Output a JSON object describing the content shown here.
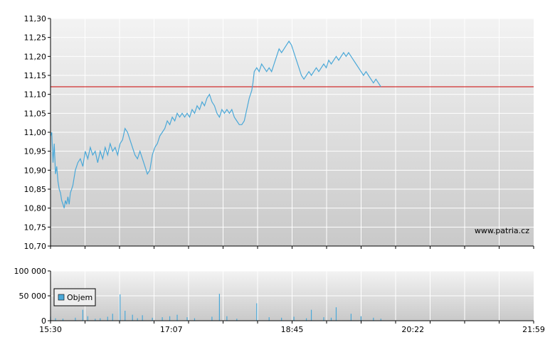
{
  "chart_data": [
    {
      "type": "line",
      "title": "",
      "xlabel": "",
      "ylabel": "",
      "ylim": [
        10.7,
        11.3
      ],
      "y_ticks": [
        "10,70",
        "10,75",
        "10,80",
        "10,85",
        "10,90",
        "10,95",
        "11,00",
        "11,05",
        "11,10",
        "11,15",
        "11,20",
        "11,25",
        "11,30"
      ],
      "x_ticks": [
        "15:30",
        "17:07",
        "18:45",
        "20:22",
        "21:59"
      ],
      "xlim_minutes": [
        930,
        1319
      ],
      "grid": true,
      "watermark": "www.patria.cz",
      "reference_line": {
        "value": 11.12,
        "color": "#cc0000"
      },
      "series": [
        {
          "color": "#4aa8d8",
          "points": [
            [
              930,
              10.99
            ],
            [
              931,
              11.0
            ],
            [
              932,
              10.92
            ],
            [
              933,
              10.97
            ],
            [
              934,
              10.89
            ],
            [
              935,
              10.91
            ],
            [
              936,
              10.87
            ],
            [
              937,
              10.85
            ],
            [
              938,
              10.84
            ],
            [
              939,
              10.82
            ],
            [
              940,
              10.81
            ],
            [
              941,
              10.8
            ],
            [
              942,
              10.82
            ],
            [
              943,
              10.81
            ],
            [
              944,
              10.83
            ],
            [
              945,
              10.81
            ],
            [
              946,
              10.84
            ],
            [
              947,
              10.85
            ],
            [
              948,
              10.86
            ],
            [
              950,
              10.9
            ],
            [
              952,
              10.92
            ],
            [
              954,
              10.93
            ],
            [
              956,
              10.91
            ],
            [
              958,
              10.95
            ],
            [
              960,
              10.93
            ],
            [
              962,
              10.96
            ],
            [
              964,
              10.94
            ],
            [
              966,
              10.95
            ],
            [
              968,
              10.92
            ],
            [
              970,
              10.95
            ],
            [
              972,
              10.93
            ],
            [
              974,
              10.96
            ],
            [
              976,
              10.94
            ],
            [
              978,
              10.97
            ],
            [
              980,
              10.95
            ],
            [
              982,
              10.96
            ],
            [
              984,
              10.94
            ],
            [
              986,
              10.97
            ],
            [
              988,
              10.98
            ],
            [
              990,
              11.01
            ],
            [
              992,
              11.0
            ],
            [
              994,
              10.98
            ],
            [
              996,
              10.96
            ],
            [
              998,
              10.94
            ],
            [
              1000,
              10.93
            ],
            [
              1002,
              10.95
            ],
            [
              1004,
              10.93
            ],
            [
              1006,
              10.91
            ],
            [
              1008,
              10.89
            ],
            [
              1010,
              10.9
            ],
            [
              1012,
              10.94
            ],
            [
              1014,
              10.96
            ],
            [
              1016,
              10.97
            ],
            [
              1018,
              10.99
            ],
            [
              1020,
              11.0
            ],
            [
              1022,
              11.01
            ],
            [
              1024,
              11.03
            ],
            [
              1026,
              11.02
            ],
            [
              1028,
              11.04
            ],
            [
              1030,
              11.03
            ],
            [
              1032,
              11.05
            ],
            [
              1034,
              11.04
            ],
            [
              1036,
              11.05
            ],
            [
              1038,
              11.04
            ],
            [
              1040,
              11.05
            ],
            [
              1042,
              11.04
            ],
            [
              1044,
              11.06
            ],
            [
              1046,
              11.05
            ],
            [
              1048,
              11.07
            ],
            [
              1050,
              11.06
            ],
            [
              1052,
              11.08
            ],
            [
              1054,
              11.07
            ],
            [
              1056,
              11.09
            ],
            [
              1058,
              11.1
            ],
            [
              1060,
              11.08
            ],
            [
              1062,
              11.07
            ],
            [
              1064,
              11.05
            ],
            [
              1066,
              11.04
            ],
            [
              1068,
              11.06
            ],
            [
              1070,
              11.05
            ],
            [
              1072,
              11.06
            ],
            [
              1074,
              11.05
            ],
            [
              1076,
              11.06
            ],
            [
              1078,
              11.04
            ],
            [
              1080,
              11.03
            ],
            [
              1082,
              11.02
            ],
            [
              1084,
              11.02
            ],
            [
              1086,
              11.03
            ],
            [
              1088,
              11.06
            ],
            [
              1090,
              11.09
            ],
            [
              1092,
              11.11
            ],
            [
              1093,
              11.13
            ],
            [
              1094,
              11.16
            ],
            [
              1096,
              11.17
            ],
            [
              1098,
              11.16
            ],
            [
              1100,
              11.18
            ],
            [
              1102,
              11.17
            ],
            [
              1104,
              11.16
            ],
            [
              1106,
              11.17
            ],
            [
              1108,
              11.16
            ],
            [
              1110,
              11.18
            ],
            [
              1112,
              11.2
            ],
            [
              1114,
              11.22
            ],
            [
              1116,
              11.21
            ],
            [
              1118,
              11.22
            ],
            [
              1120,
              11.23
            ],
            [
              1122,
              11.24
            ],
            [
              1124,
              11.23
            ],
            [
              1126,
              11.21
            ],
            [
              1128,
              11.19
            ],
            [
              1130,
              11.17
            ],
            [
              1132,
              11.15
            ],
            [
              1134,
              11.14
            ],
            [
              1136,
              11.15
            ],
            [
              1138,
              11.16
            ],
            [
              1140,
              11.15
            ],
            [
              1142,
              11.16
            ],
            [
              1144,
              11.17
            ],
            [
              1146,
              11.16
            ],
            [
              1148,
              11.17
            ],
            [
              1150,
              11.18
            ],
            [
              1152,
              11.17
            ],
            [
              1154,
              11.19
            ],
            [
              1156,
              11.18
            ],
            [
              1158,
              11.19
            ],
            [
              1160,
              11.2
            ],
            [
              1162,
              11.19
            ],
            [
              1164,
              11.2
            ],
            [
              1166,
              11.21
            ],
            [
              1168,
              11.2
            ],
            [
              1170,
              11.21
            ],
            [
              1172,
              11.2
            ],
            [
              1174,
              11.19
            ],
            [
              1176,
              11.18
            ],
            [
              1178,
              11.17
            ],
            [
              1180,
              11.16
            ],
            [
              1182,
              11.15
            ],
            [
              1184,
              11.16
            ],
            [
              1186,
              11.15
            ],
            [
              1188,
              11.14
            ],
            [
              1190,
              11.13
            ],
            [
              1192,
              11.14
            ],
            [
              1194,
              11.13
            ],
            [
              1196,
              11.12
            ]
          ]
        }
      ]
    },
    {
      "type": "bar",
      "title": "",
      "ylim": [
        0,
        100000
      ],
      "y_ticks": [
        "0",
        "50 000",
        "100 000"
      ],
      "x_ticks": [
        "15:30",
        "17:07",
        "18:45",
        "20:22",
        "21:59"
      ],
      "grid": true,
      "legend_position": "bottom-left",
      "series": [
        {
          "name": "Objem",
          "color": "#4aa8d8",
          "x": [
            930,
            934,
            940,
            950,
            956,
            960,
            966,
            970,
            976,
            980,
            986,
            990,
            996,
            1000,
            1004,
            1012,
            1020,
            1026,
            1032,
            1040,
            1046,
            1060,
            1066,
            1072,
            1080,
            1096,
            1106,
            1116,
            1126,
            1136,
            1140,
            1150,
            1156,
            1160,
            1172,
            1180,
            1190,
            1196
          ],
          "values": [
            8000,
            5000,
            4000,
            6000,
            22000,
            9000,
            4000,
            5000,
            8000,
            14000,
            53000,
            20000,
            12000,
            5000,
            11000,
            6000,
            7000,
            9000,
            12000,
            7000,
            5000,
            8000,
            54000,
            9000,
            4000,
            35000,
            7000,
            6000,
            8000,
            5000,
            22000,
            7000,
            6000,
            27000,
            14000,
            9000,
            6000,
            4000
          ]
        }
      ]
    }
  ]
}
